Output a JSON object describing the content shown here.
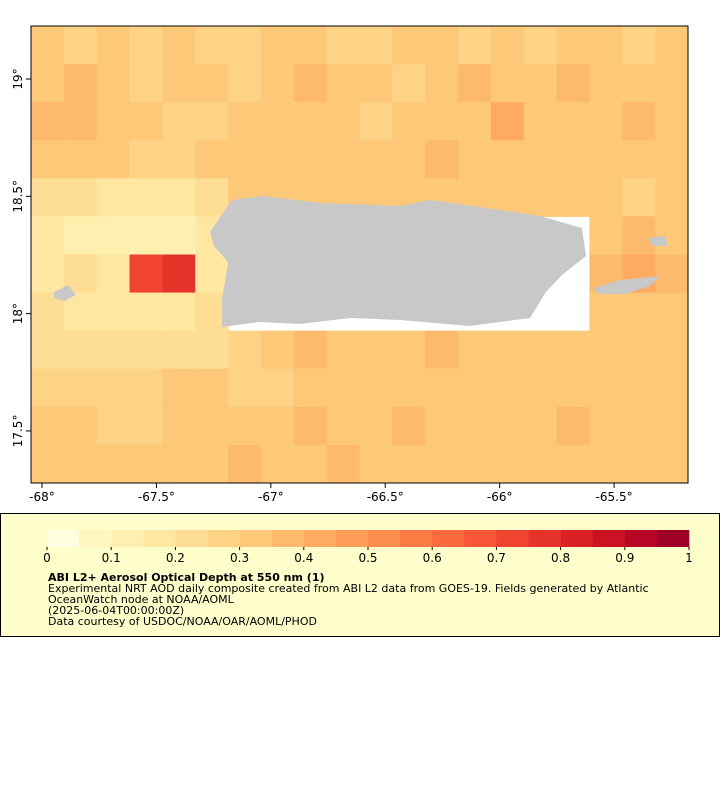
{
  "chart_data": {
    "type": "heatmap",
    "xlim": [
      -68.048,
      -65.177
    ],
    "ylim": [
      17.278,
      19.226
    ],
    "xticks": [
      {
        "value": -68,
        "label": "-68°"
      },
      {
        "value": -67.5,
        "label": "-67.5°"
      },
      {
        "value": -67,
        "label": "-67°"
      },
      {
        "value": -66.5,
        "label": "-66.5°"
      },
      {
        "value": -66,
        "label": "-66°"
      },
      {
        "value": -65.5,
        "label": "-65.5°"
      }
    ],
    "yticks": [
      {
        "value": 17.5,
        "label": "17.5°"
      },
      {
        "value": 18,
        "label": "18°"
      },
      {
        "value": 18.5,
        "label": "18.5°"
      },
      {
        "value": 19,
        "label": "19°"
      }
    ],
    "values": [
      [
        0.3,
        0.25,
        0.3,
        0.25,
        0.3,
        0.28,
        0.25,
        0.3,
        0.3,
        0.28,
        0.25,
        0.3,
        0.3,
        0.25,
        0.3,
        0.28,
        0.3,
        0.3,
        0.25,
        0.3
      ],
      [
        0.3,
        0.35,
        0.3,
        0.25,
        0.3,
        0.3,
        0.25,
        0.3,
        0.35,
        0.3,
        0.3,
        0.25,
        0.3,
        0.35,
        0.3,
        0.3,
        0.35,
        0.3,
        0.3,
        0.3
      ],
      [
        0.35,
        0.35,
        0.3,
        0.3,
        0.25,
        0.25,
        0.3,
        0.3,
        0.3,
        0.3,
        0.25,
        0.3,
        0.3,
        0.3,
        0.4,
        0.3,
        0.3,
        0.3,
        0.35,
        0.3
      ],
      [
        0.3,
        0.3,
        0.3,
        0.25,
        0.25,
        0.3,
        0.3,
        0.3,
        0.3,
        0.3,
        0.3,
        0.3,
        0.35,
        0.3,
        0.3,
        0.3,
        0.3,
        0.3,
        0.3,
        0.3
      ],
      [
        0.2,
        0.2,
        0.15,
        0.15,
        0.15,
        0.2,
        0.3,
        0.3,
        0.3,
        0.3,
        0.3,
        0.3,
        0.3,
        0.3,
        0.3,
        0.3,
        0.3,
        0.3,
        0.25,
        0.3
      ],
      [
        0.15,
        0.1,
        0.1,
        0.1,
        0.1,
        0.15,
        null,
        null,
        null,
        null,
        null,
        null,
        null,
        null,
        null,
        null,
        null,
        0.3,
        0.35,
        0.3
      ],
      [
        0.15,
        0.2,
        0.15,
        0.7,
        0.75,
        0.15,
        null,
        null,
        null,
        null,
        null,
        null,
        null,
        null,
        null,
        null,
        null,
        0.35,
        0.4,
        0.35
      ],
      [
        0.2,
        0.15,
        0.15,
        0.15,
        0.15,
        0.2,
        null,
        null,
        null,
        null,
        null,
        null,
        null,
        null,
        null,
        null,
        null,
        0.3,
        0.3,
        0.3
      ],
      [
        0.2,
        0.2,
        0.2,
        0.2,
        0.2,
        0.2,
        0.25,
        0.3,
        0.35,
        0.3,
        0.3,
        0.3,
        0.35,
        0.3,
        0.3,
        0.3,
        0.3,
        0.3,
        0.3,
        0.3
      ],
      [
        0.25,
        0.25,
        0.25,
        0.25,
        0.3,
        0.3,
        0.25,
        0.25,
        0.3,
        0.3,
        0.3,
        0.3,
        0.3,
        0.3,
        0.3,
        0.3,
        0.3,
        0.3,
        0.3,
        0.3
      ],
      [
        0.3,
        0.3,
        0.25,
        0.25,
        0.3,
        0.3,
        0.3,
        0.3,
        0.35,
        0.3,
        0.3,
        0.35,
        0.3,
        0.3,
        0.3,
        0.3,
        0.35,
        0.3,
        0.3,
        0.3
      ],
      [
        0.3,
        0.3,
        0.3,
        0.3,
        0.3,
        0.3,
        0.35,
        0.3,
        0.3,
        0.35,
        0.3,
        0.3,
        0.3,
        0.3,
        0.3,
        0.3,
        0.3,
        0.3,
        0.3,
        0.3
      ]
    ],
    "colorbar": {
      "lim": [
        0,
        1
      ],
      "ticks": [
        0,
        0.1,
        0.2,
        0.3,
        0.4,
        0.5,
        0.6,
        0.7,
        0.8,
        0.9,
        1
      ],
      "colors": [
        "#fffde0",
        "#fff6c0",
        "#fff0b0",
        "#ffe7a2",
        "#fedd94",
        "#fed386",
        "#fec879",
        "#feba6c",
        "#feaa61",
        "#fd9c57",
        "#fd8d4c",
        "#fc7c45",
        "#fb6a3e",
        "#f85737",
        "#f04430",
        "#e6332a",
        "#da2125",
        "#cb1224",
        "#b90627",
        "#9f0027"
      ]
    },
    "title": "ABI L2+ Aerosol Optical Depth at 550 nm (1)",
    "description": [
      "Experimental NRT AOD daily composite created from ABI L2 data from GOES-19. Fields generated by Atlantic",
      "OceanWatch node at NOAA/AOML",
      "(2025-06-04T00:00:00Z)",
      "Data courtesy of USDOC/NOAA/OAR/AOML/PHOD"
    ]
  }
}
